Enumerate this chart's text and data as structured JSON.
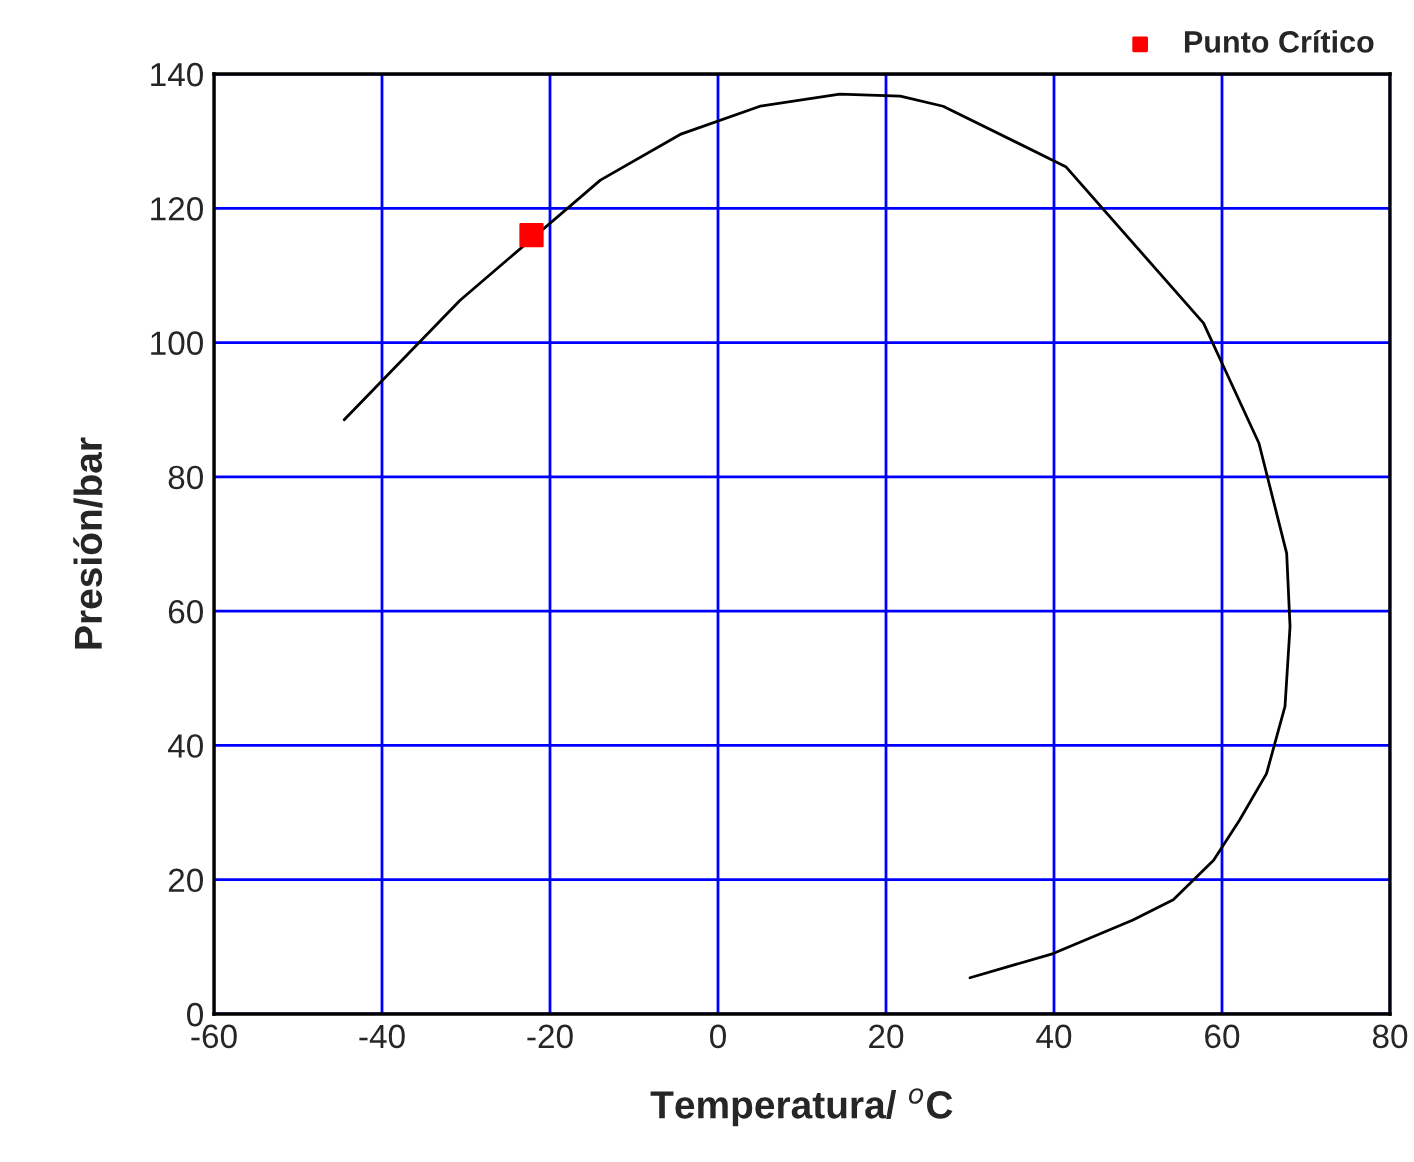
{
  "chart_data": {
    "type": "line",
    "xlabel": "Temperatura/ $^{o}$C",
    "ylabel": "Presión/bar",
    "xlim": [
      -60,
      80
    ],
    "xticks": [
      -60,
      -40,
      -20,
      0,
      20,
      40,
      60,
      80
    ],
    "ylim": [
      0,
      140
    ],
    "yticks": [
      0,
      20,
      40,
      60,
      80,
      100,
      120,
      140
    ],
    "grid": true,
    "legend": "top right",
    "series": [
      {
        "color": "#000000",
        "marker": "none",
        "line_style": "solid",
        "x": [
          -44.5,
          -30.7,
          -14,
          -4.5,
          5,
          14.5,
          21.7,
          26.8,
          41.4,
          57.8,
          64.4,
          67.7,
          68.1,
          67.5,
          65.3,
          62.1,
          59,
          54.2,
          49.4,
          39.9,
          30
        ],
        "values": [
          88.5,
          106.3,
          124.2,
          131,
          135.2,
          137,
          136.7,
          135.2,
          126.2,
          102.9,
          85,
          68.6,
          57.7,
          45.8,
          35.8,
          28.9,
          22.9,
          17,
          14,
          9,
          5.4
        ]
      },
      {
        "type": "scatter",
        "name": "Punto Crítico",
        "color": "#ff0000",
        "marker": "square",
        "x": [
          -22.2
        ],
        "values": [
          116.0
        ]
      }
    ]
  }
}
